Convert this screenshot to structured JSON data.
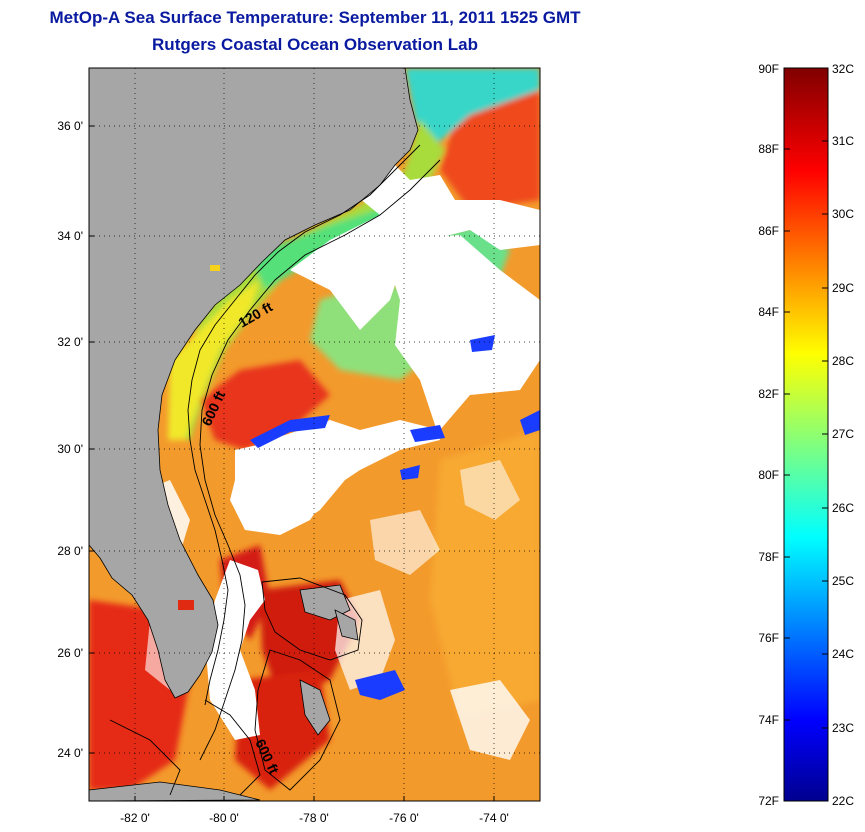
{
  "title": {
    "line1": "MetOp-A Sea Surface Temperature:  September 11, 2011 1525 GMT",
    "line2": "Rutgers Coastal Ocean Observation Lab"
  },
  "map": {
    "lon_range": [
      -83,
      -73
    ],
    "lat_range": [
      23,
      37
    ],
    "lat_ticks": [
      {
        "value": 24,
        "label": "24 0'"
      },
      {
        "value": 26,
        "label": "26 0'"
      },
      {
        "value": 28,
        "label": "28 0'"
      },
      {
        "value": 30,
        "label": "30 0'"
      },
      {
        "value": 32,
        "label": "32 0'"
      },
      {
        "value": 34,
        "label": "34 0'"
      },
      {
        "value": 36,
        "label": "36 0'"
      }
    ],
    "lon_ticks": [
      {
        "value": -82,
        "label": "-82 0'"
      },
      {
        "value": -80,
        "label": "-80 0'"
      },
      {
        "value": -78,
        "label": "-78 0'"
      },
      {
        "value": -76,
        "label": "-76 0'"
      },
      {
        "value": -74,
        "label": "-74 0'"
      }
    ],
    "contour_labels": {
      "c120": "120 ft",
      "c600a": "600 ft",
      "c600b": "600 ft"
    },
    "colors": {
      "land": "#a6a6a6",
      "cloud": "#ffffff",
      "grid": "#000000"
    }
  },
  "colorbar": {
    "fahrenheit": [
      "90F",
      "88F",
      "86F",
      "84F",
      "82F",
      "80F",
      "78F",
      "76F",
      "74F",
      "72F"
    ],
    "celsius": [
      "32C",
      "31C",
      "30C",
      "29C",
      "28C",
      "27C",
      "26C",
      "25C",
      "24C",
      "23C",
      "22C"
    ],
    "range_c": [
      22,
      32
    ],
    "range_f": [
      72,
      90
    ],
    "colormap": "jet"
  }
}
